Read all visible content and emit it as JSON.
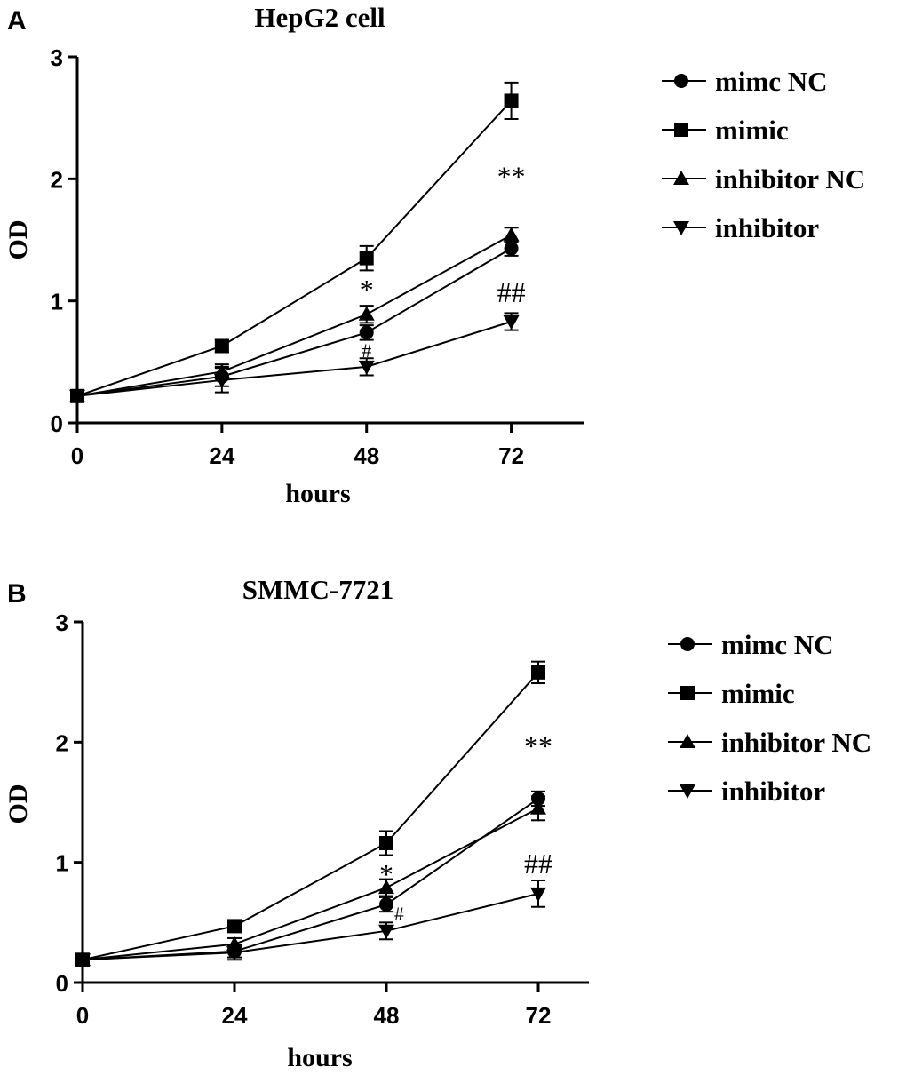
{
  "chart_data": [
    {
      "type": "line",
      "panel_label": "A",
      "title": "HepG2 cell",
      "xlabel": "hours",
      "ylabel": "OD",
      "x": [
        0,
        24,
        48,
        72
      ],
      "xticks": [
        "0",
        "24",
        "48",
        "72"
      ],
      "yticks": [
        "0",
        "1",
        "2",
        "3"
      ],
      "xlim": [
        0,
        84
      ],
      "ylim": [
        0,
        3
      ],
      "grid": false,
      "legend_position": "right",
      "series": [
        {
          "name": "mimc NC",
          "marker": "circle",
          "values": [
            0.22,
            0.38,
            0.74,
            1.43
          ],
          "errors": [
            0.03,
            0.08,
            0.06,
            0.06
          ]
        },
        {
          "name": "mimic",
          "marker": "square",
          "values": [
            0.22,
            0.63,
            1.35,
            2.64
          ],
          "errors": [
            0.03,
            0.05,
            0.1,
            0.15
          ]
        },
        {
          "name": "inhibitor NC",
          "marker": "triangle-up",
          "values": [
            0.22,
            0.42,
            0.89,
            1.54
          ],
          "errors": [
            0.03,
            0.06,
            0.07,
            0.06
          ]
        },
        {
          "name": "inhibitor",
          "marker": "triangle-down",
          "values": [
            0.22,
            0.35,
            0.46,
            0.83
          ],
          "errors": [
            0.03,
            0.1,
            0.07,
            0.07
          ]
        }
      ],
      "annotations": [
        {
          "text": "*",
          "x": 48,
          "y": 1.1,
          "size": "large"
        },
        {
          "text": "#",
          "x": 48,
          "y": 0.6,
          "size": "small"
        },
        {
          "text": "**",
          "x": 72,
          "y": 2.03,
          "size": "large"
        },
        {
          "text": "##",
          "x": 72,
          "y": 1.08,
          "size": "large"
        }
      ]
    },
    {
      "type": "line",
      "panel_label": "B",
      "title": "SMMC-7721",
      "xlabel": "hours",
      "ylabel": "OD",
      "x": [
        0,
        24,
        48,
        72
      ],
      "xticks": [
        "0",
        "24",
        "48",
        "72"
      ],
      "yticks": [
        "0",
        "1",
        "2",
        "3"
      ],
      "xlim": [
        0,
        80
      ],
      "ylim": [
        0,
        3
      ],
      "grid": false,
      "legend_position": "right",
      "series": [
        {
          "name": "mimc NC",
          "marker": "circle",
          "values": [
            0.19,
            0.26,
            0.65,
            1.53
          ],
          "errors": [
            0.03,
            0.05,
            0.06,
            0.06
          ]
        },
        {
          "name": "mimic",
          "marker": "square",
          "values": [
            0.19,
            0.47,
            1.16,
            2.58
          ],
          "errors": [
            0.03,
            0.04,
            0.1,
            0.09
          ]
        },
        {
          "name": "inhibitor NC",
          "marker": "triangle-up",
          "values": [
            0.19,
            0.32,
            0.79,
            1.45
          ],
          "errors": [
            0.03,
            0.05,
            0.07,
            0.1
          ]
        },
        {
          "name": "inhibitor",
          "marker": "triangle-down",
          "values": [
            0.19,
            0.25,
            0.43,
            0.74
          ],
          "errors": [
            0.03,
            0.06,
            0.07,
            0.11
          ]
        }
      ],
      "annotations": [
        {
          "text": "*",
          "x": 48,
          "y": 0.91,
          "size": "large"
        },
        {
          "text": "#",
          "x": 50,
          "y": 0.58,
          "size": "small"
        },
        {
          "text": "**",
          "x": 72,
          "y": 1.98,
          "size": "large"
        },
        {
          "text": "##",
          "x": 72,
          "y": 1.0,
          "size": "large"
        }
      ]
    }
  ]
}
